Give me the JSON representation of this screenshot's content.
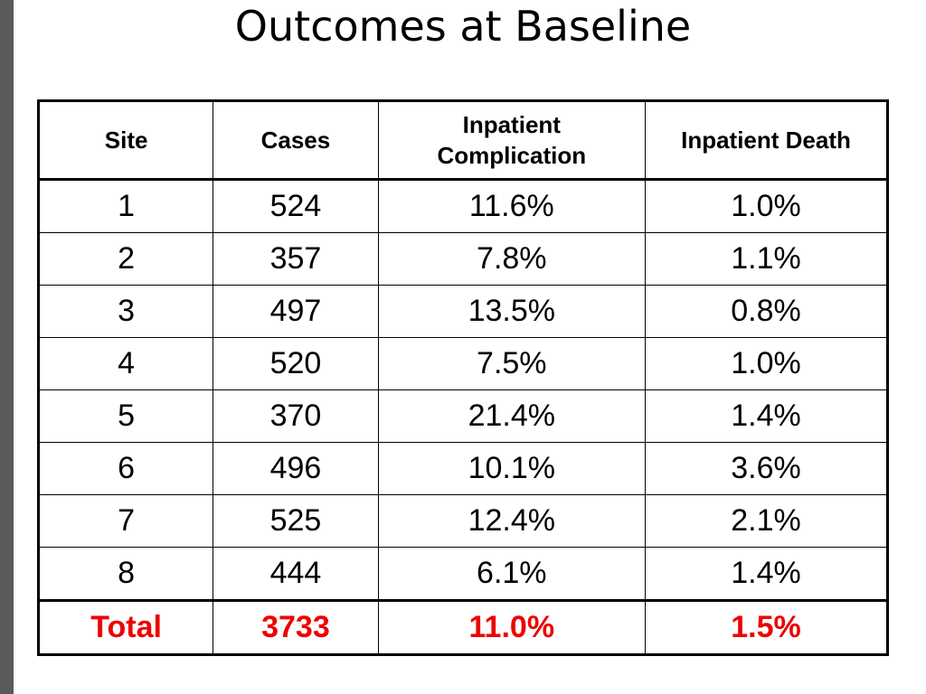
{
  "slide": {
    "title": "Outcomes at Baseline"
  },
  "table": {
    "headers": [
      "Site",
      "Cases",
      "Inpatient Complication",
      "Inpatient Death"
    ],
    "rows": [
      [
        "1",
        "524",
        "11.6%",
        "1.0%"
      ],
      [
        "2",
        "357",
        "7.8%",
        "1.1%"
      ],
      [
        "3",
        "497",
        "13.5%",
        "0.8%"
      ],
      [
        "4",
        "520",
        "7.5%",
        "1.0%"
      ],
      [
        "5",
        "370",
        "21.4%",
        "1.4%"
      ],
      [
        "6",
        "496",
        "10.1%",
        "3.6%"
      ],
      [
        "7",
        "525",
        "12.4%",
        "2.1%"
      ],
      [
        "8",
        "444",
        "6.1%",
        "1.4%"
      ]
    ],
    "total": [
      "Total",
      "3733",
      "11.0%",
      "1.5%"
    ]
  },
  "colors": {
    "total_text": "#ee0000",
    "left_bar": "#5a5a5a"
  }
}
